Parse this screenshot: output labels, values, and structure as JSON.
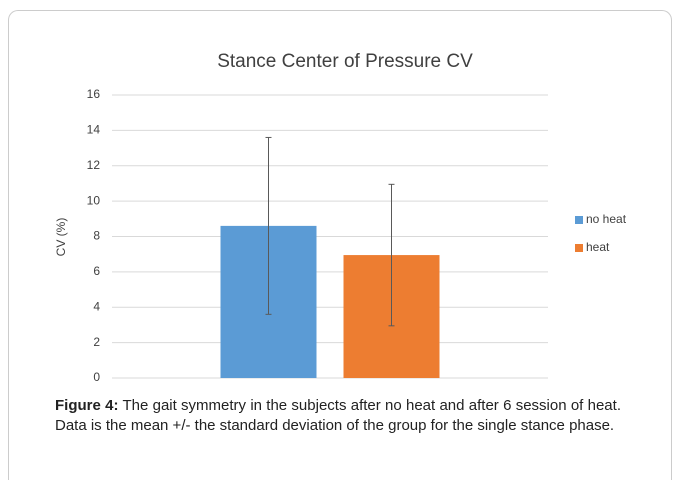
{
  "chart_data": {
    "type": "bar",
    "title": "Stance Center of Pressure CV",
    "y_label": "CV (%)",
    "categories": [
      null
    ],
    "series": [
      {
        "name": "no heat",
        "color": "#5b9bd5",
        "values": [
          8.6
        ],
        "errors": [
          5.0
        ]
      },
      {
        "name": "heat",
        "color": "#ed7d31",
        "values": [
          6.95
        ],
        "errors": [
          4.0
        ]
      }
    ],
    "ylim": [
      0,
      16
    ],
    "yticks": [
      0,
      2,
      4,
      6,
      8,
      10,
      12,
      14,
      16
    ],
    "grid": true,
    "legend": "right"
  },
  "caption": {
    "label": "Figure 4:",
    "text": "The gait symmetry in the subjects after no heat and after 6 session of heat.  Data is the mean +/- the standard deviation of the group for the single stance phase."
  }
}
